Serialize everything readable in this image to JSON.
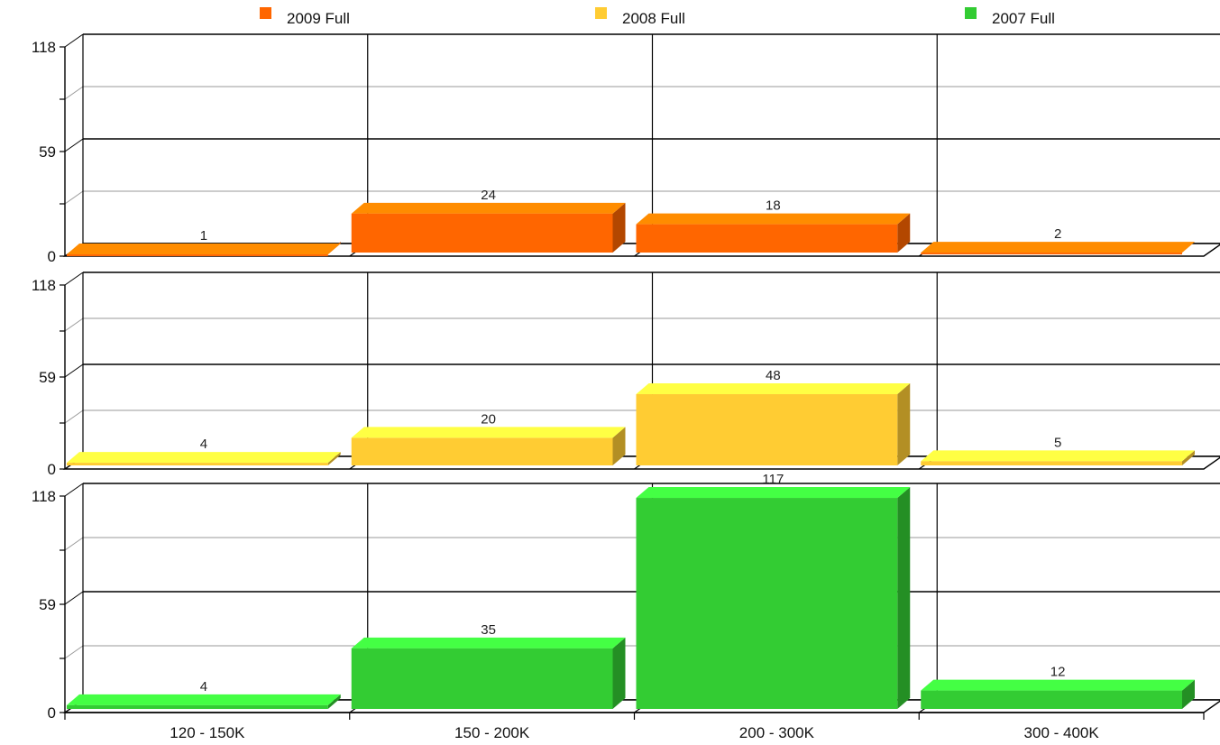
{
  "chart_data": {
    "type": "bar",
    "categories": [
      "120 - 150K",
      "150 - 200K",
      "200 - 300K",
      "300 - 400K"
    ],
    "series": [
      {
        "name": "2009 Full",
        "values": [
          1,
          24,
          18,
          2
        ],
        "color": "#ff6600",
        "top_color": "#ff8c00",
        "side_color": "#b34700"
      },
      {
        "name": "2008 Full",
        "values": [
          4,
          20,
          48,
          5
        ],
        "color": "#ffcc33",
        "top_color": "#ffff44",
        "side_color": "#b38f24"
      },
      {
        "name": "2007 Full",
        "values": [
          4,
          35,
          117,
          12
        ],
        "color": "#33cc33",
        "top_color": "#44ff44",
        "side_color": "#248f24"
      }
    ],
    "y_ticks": [
      "0",
      "59",
      "118"
    ],
    "ylim": [
      0,
      118
    ],
    "grid": true,
    "legend": "top",
    "style": "3d"
  }
}
